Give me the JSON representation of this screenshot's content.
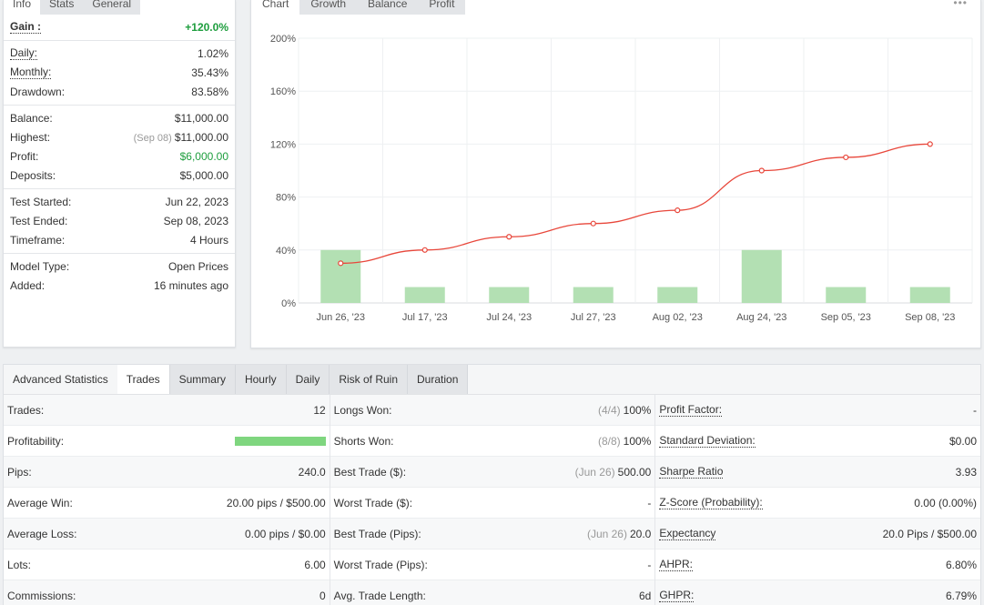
{
  "info_panel": {
    "tabs": [
      "Info",
      "Stats",
      "General"
    ],
    "groups": [
      [
        {
          "label": "Gain :",
          "value": "+120.0%",
          "dotted": true,
          "green": true,
          "bold": true
        }
      ],
      [
        {
          "label": "Daily:",
          "value": "1.02%",
          "dotted": true
        },
        {
          "label": "Monthly:",
          "value": "35.43%",
          "dotted": true
        },
        {
          "label": "Drawdown:",
          "value": "83.58%"
        }
      ],
      [
        {
          "label": "Balance:",
          "value": "$11,000.00"
        },
        {
          "label": "Highest:",
          "value": "$11,000.00",
          "note": "(Sep 08)"
        },
        {
          "label": "Profit:",
          "value": "$6,000.00",
          "green": true
        },
        {
          "label": "Deposits:",
          "value": "$5,000.00"
        }
      ],
      [
        {
          "label": "Test Started:",
          "value": "Jun 22, 2023"
        },
        {
          "label": "Test Ended:",
          "value": "Sep 08, 2023"
        },
        {
          "label": "Timeframe:",
          "value": "4 Hours"
        }
      ],
      [
        {
          "label": "Model Type:",
          "value": "Open Prices"
        },
        {
          "label": "Added:",
          "value": "16 minutes ago"
        }
      ]
    ]
  },
  "chart_panel": {
    "tabs": [
      "Chart",
      "Growth",
      "Balance",
      "Profit"
    ],
    "more_icon": "ellipsis-icon"
  },
  "chart_data": {
    "type": "line",
    "categories": [
      "Jun 26, '23",
      "Jul 17, '23",
      "Jul 24, '23",
      "Jul 27, '23",
      "Aug 02, '23",
      "Aug 24, '23",
      "Sep 05, '23",
      "Sep 08, '23"
    ],
    "series": [
      {
        "type": "line",
        "values": [
          30,
          40,
          50,
          60,
          70,
          100,
          110,
          120
        ],
        "color": "#e8473b"
      },
      {
        "type": "bar",
        "values": [
          40,
          12,
          12,
          12,
          12,
          40,
          12,
          12
        ],
        "color": "#b3e0b3"
      }
    ],
    "yticks": [
      "0%",
      "40%",
      "80%",
      "120%",
      "160%",
      "200%"
    ],
    "ylim": [
      0,
      200
    ],
    "grid": true
  },
  "advanced": {
    "title": "Advanced Statistics",
    "tabs": [
      "Trades",
      "Summary",
      "Hourly",
      "Daily",
      "Risk of Ruin",
      "Duration"
    ],
    "columns": [
      [
        {
          "label": "Trades:",
          "value": "12"
        },
        {
          "label": "Profitability:",
          "bar": 1.0
        },
        {
          "label": "Pips:",
          "value": "240.0"
        },
        {
          "label": "Average Win:",
          "value": "20.00 pips / $500.00"
        },
        {
          "label": "Average Loss:",
          "value": "0.00 pips / $0.00"
        },
        {
          "label": "Lots:",
          "value": "6.00"
        },
        {
          "label": "Commissions:",
          "value": "0"
        }
      ],
      [
        {
          "label": "Longs Won:",
          "note": "(4/4)",
          "value": "100%"
        },
        {
          "label": "Shorts Won:",
          "note": "(8/8)",
          "value": "100%"
        },
        {
          "label": "Best Trade ($):",
          "note": "(Jun 26)",
          "value": "500.00"
        },
        {
          "label": "Worst Trade ($):",
          "value": "-"
        },
        {
          "label": "Best Trade (Pips):",
          "note": "(Jun 26)",
          "value": "20.0"
        },
        {
          "label": "Worst Trade (Pips):",
          "value": "-"
        },
        {
          "label": "Avg. Trade Length:",
          "value": "6d"
        }
      ],
      [
        {
          "label": "Profit Factor:",
          "value": "-",
          "dotted": true
        },
        {
          "label": "Standard Deviation:",
          "value": "$0.00",
          "dotted": true
        },
        {
          "label": "Sharpe Ratio",
          "value": "3.93",
          "dotted": true
        },
        {
          "label": "Z-Score (Probability):",
          "value": "0.00 (0.00%)",
          "dotted": true
        },
        {
          "label": "Expectancy",
          "value": "20.0 Pips / $500.00",
          "dotted": true
        },
        {
          "label": "AHPR:",
          "value": "6.80%",
          "dotted": true
        },
        {
          "label": "GHPR:",
          "value": "6.79%",
          "dotted": true
        }
      ]
    ]
  }
}
